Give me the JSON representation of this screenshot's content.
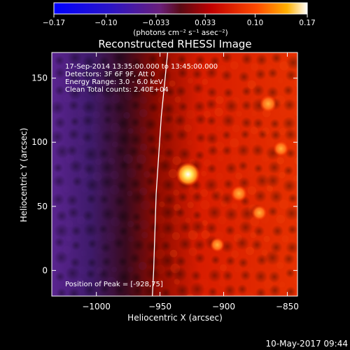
{
  "colorbar": {
    "ticks": [
      -0.17,
      -0.1,
      -0.033,
      0.033,
      0.1,
      0.17
    ],
    "tick_labels": [
      "−0.17",
      "−0.10",
      "−0.033",
      "0.033",
      "0.10",
      "0.17"
    ],
    "units_label": "(photons cm⁻² s⁻¹ asec⁻²)",
    "range": [
      -0.17,
      0.17
    ]
  },
  "chart_data": {
    "type": "heatmap",
    "title": "Reconstructed RHESSI Image",
    "xlabel": "Heliocentric X (arcsec)",
    "ylabel": "Heliocentric Y (arcsec)",
    "xlim": [
      -1035,
      -842
    ],
    "ylim": [
      -20,
      170
    ],
    "xticks": [
      -1000,
      -950,
      -900,
      -850
    ],
    "xtick_labels": [
      "−1000",
      "−950",
      "−900",
      "−850"
    ],
    "yticks": [
      0,
      50,
      100,
      150
    ],
    "ytick_labels": [
      "0",
      "50",
      "100",
      "150"
    ],
    "info_lines": [
      "17-Sep-2014 13:35:00.000 to 13:45:00.000",
      "Detectors: 3F 6F 9F, Att 0",
      "Energy Range: 3.0 - 6.0 keV",
      "Clean     Total counts: 2.40E+04"
    ],
    "peak_text": "Position of Peak = [-928,75]",
    "peak": {
      "x": -928,
      "y": 75,
      "value": 0.17
    },
    "secondary_sources": [
      {
        "x": -865,
        "y": 130,
        "value": 0.1
      },
      {
        "x": -888,
        "y": 60,
        "value": 0.09
      },
      {
        "x": -872,
        "y": 45,
        "value": 0.08
      },
      {
        "x": -855,
        "y": 95,
        "value": 0.08
      },
      {
        "x": -905,
        "y": 20,
        "value": 0.07
      }
    ],
    "limb_x_at_y": [
      {
        "y": 170,
        "x": -944
      },
      {
        "y": 120,
        "x": -949
      },
      {
        "y": 60,
        "x": -953
      },
      {
        "y": 0,
        "x": -955
      },
      {
        "y": -20,
        "x": -956
      }
    ],
    "grid": false
  },
  "footer": {
    "timestamp": "10-May-2017 09:44"
  }
}
